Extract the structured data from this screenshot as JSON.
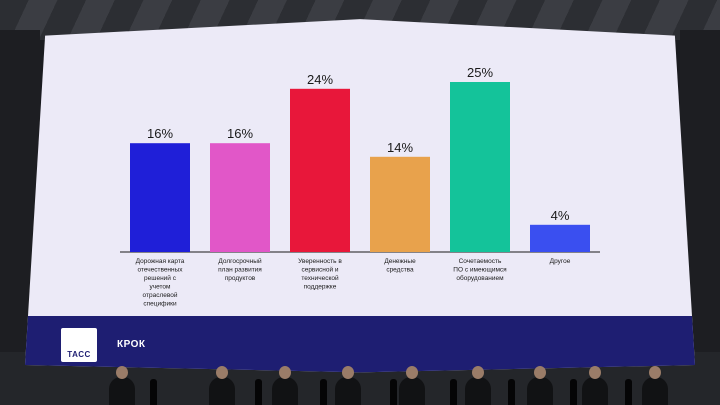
{
  "colors": {
    "screen_bg": "#eceaf7",
    "footer_bg": "#1e1e72",
    "axis": "#1a1a1a"
  },
  "footer": {
    "tass_label": "ТАСС",
    "krok_label": "КРОК"
  },
  "chart_data": {
    "type": "bar",
    "title": "",
    "xlabel": "",
    "ylabel": "",
    "ylim": [
      0,
      25
    ],
    "grid": false,
    "categories": [
      [
        "Дорожная карта",
        "отечественных",
        "решений с",
        "учетом",
        "отраслевой",
        "специфики"
      ],
      [
        "Долгосрочный",
        "план развития",
        "продуктов"
      ],
      [
        "Уверенность в",
        "сервисной и",
        "технической",
        "поддержке"
      ],
      [
        "Денежные",
        "средства"
      ],
      [
        "Сочетаемость",
        "ПО с имеющимся",
        "оборудованием"
      ],
      [
        "Другое"
      ]
    ],
    "values": [
      16,
      16,
      24,
      14,
      25,
      4
    ],
    "value_labels": [
      "16%",
      "16%",
      "24%",
      "14%",
      "25%",
      "4%"
    ],
    "colors": [
      "#1f1fd8",
      "#e157c8",
      "#e8173a",
      "#e8a24c",
      "#14c39a",
      "#3a4ff0"
    ]
  },
  "panel": {
    "people": 9
  }
}
